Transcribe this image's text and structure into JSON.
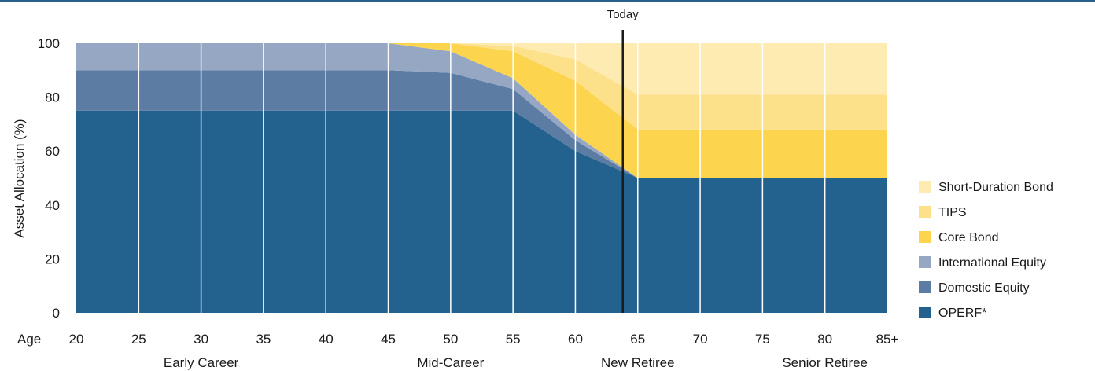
{
  "chart_data": {
    "type": "area",
    "stacked": true,
    "title": "",
    "ylabel": "Asset Allocation (%)",
    "xlabel_prefix": "Age",
    "ylim": [
      0,
      100
    ],
    "xlim": [
      20,
      85
    ],
    "yticks": [
      0,
      20,
      40,
      60,
      80,
      100
    ],
    "x": [
      20,
      25,
      30,
      35,
      40,
      45,
      50,
      55,
      60,
      65,
      70,
      75,
      80,
      85
    ],
    "x_tick_labels": [
      "20",
      "25",
      "30",
      "35",
      "40",
      "45",
      "50",
      "55",
      "60",
      "65",
      "70",
      "75",
      "80",
      "85+"
    ],
    "phases": [
      {
        "label": "Early Career",
        "at": 30
      },
      {
        "label": "Mid-Career",
        "at": 50
      },
      {
        "label": "New Retiree",
        "at": 65
      },
      {
        "label": "Senior Retiree",
        "at": 80
      }
    ],
    "marker": {
      "label": "Today",
      "x": 63.8
    },
    "grid": "vertical",
    "legend_position": "right",
    "series": [
      {
        "name": "OPERF*",
        "color": "#23618f",
        "values": [
          75,
          75,
          75,
          75,
          75,
          75,
          75,
          75,
          60,
          50,
          50,
          50,
          50,
          50
        ]
      },
      {
        "name": "Domestic Equity",
        "color": "#5c7ca3",
        "values": [
          15,
          15,
          15,
          15,
          15,
          15,
          14,
          8,
          4,
          0,
          0,
          0,
          0,
          0
        ]
      },
      {
        "name": "International Equity",
        "color": "#96a7c4",
        "values": [
          10,
          10,
          10,
          10,
          10,
          10,
          8,
          4,
          2,
          0,
          0,
          0,
          0,
          0
        ]
      },
      {
        "name": "Core Bond",
        "color": "#fdd44e",
        "values": [
          0,
          0,
          0,
          0,
          0,
          0,
          3,
          10,
          20,
          18,
          18,
          18,
          18,
          18
        ]
      },
      {
        "name": "TIPS",
        "color": "#fde08a",
        "values": [
          0,
          0,
          0,
          0,
          0,
          0,
          0,
          2,
          8,
          13,
          13,
          13,
          13,
          13
        ]
      },
      {
        "name": "Short-Duration Bond",
        "color": "#fdebb1",
        "values": [
          0,
          0,
          0,
          0,
          0,
          0,
          0,
          1,
          6,
          19,
          19,
          19,
          19,
          19
        ]
      }
    ]
  }
}
